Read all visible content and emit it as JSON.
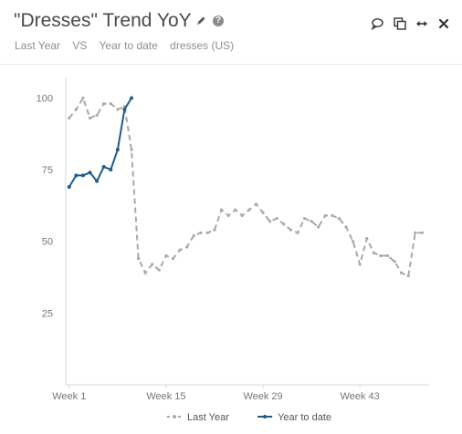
{
  "header": {
    "title": "\"Dresses\" Trend YoY",
    "help_glyph": "?",
    "subtitle": {
      "series_a": "Last Year",
      "vs": "VS",
      "series_b": "Year to date",
      "term": "dresses (US)"
    },
    "icons": [
      "pencil-icon",
      "help-icon",
      "comment-icon",
      "copy-icon",
      "resize-icon",
      "close-icon"
    ]
  },
  "chart_data": {
    "type": "line",
    "title": "",
    "xlabel": "",
    "ylabel": "",
    "x_ticks": [
      {
        "week": 1,
        "label": "Week 1"
      },
      {
        "week": 15,
        "label": "Week 15"
      },
      {
        "week": 29,
        "label": "Week 29"
      },
      {
        "week": 43,
        "label": "Week 43"
      }
    ],
    "y_ticks": [
      25,
      50,
      75,
      100
    ],
    "xlim": [
      0.5,
      53
    ],
    "ylim": [
      0,
      110
    ],
    "grid": false,
    "legend_position": "bottom",
    "series": [
      {
        "name": "Last Year",
        "color": "#a9a9a9",
        "dashed": true,
        "x": [
          1,
          2,
          3,
          4,
          5,
          6,
          7,
          8,
          9,
          10,
          11,
          12,
          13,
          14,
          15,
          16,
          17,
          18,
          19,
          20,
          21,
          22,
          23,
          24,
          25,
          26,
          27,
          28,
          29,
          30,
          31,
          32,
          33,
          34,
          35,
          36,
          37,
          38,
          39,
          40,
          41,
          42,
          43,
          44,
          45,
          46,
          47,
          48,
          49,
          50,
          51,
          52
        ],
        "values": [
          93,
          96,
          100,
          93,
          94,
          98,
          98,
          96,
          97,
          82,
          44,
          39,
          42,
          40,
          45,
          44,
          47,
          48,
          52,
          53,
          53,
          54,
          61,
          59,
          61,
          59,
          61,
          63,
          60,
          57,
          58,
          56,
          54,
          53,
          58,
          57,
          55,
          59,
          59,
          58,
          55,
          50,
          42,
          51,
          46,
          45,
          45,
          43,
          39,
          38,
          53,
          53
        ]
      },
      {
        "name": "Year to date",
        "color": "#1f5c8b",
        "dashed": false,
        "x": [
          1,
          2,
          3,
          4,
          5,
          6,
          7,
          8,
          9,
          10
        ],
        "values": [
          69,
          73,
          73,
          74,
          71,
          76,
          75,
          82,
          96,
          100
        ]
      }
    ]
  }
}
